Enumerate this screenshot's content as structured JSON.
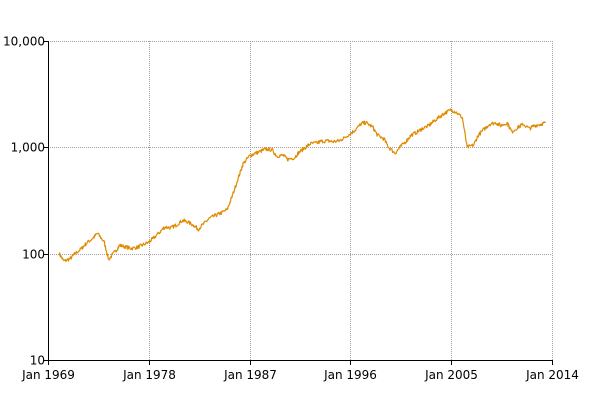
{
  "chart_data": {
    "type": "line",
    "title": "",
    "xlabel": "",
    "ylabel": "",
    "x_scale": "time",
    "y_scale": "log",
    "xlim": [
      "1969-01",
      "2014-01"
    ],
    "ylim": [
      10,
      10000
    ],
    "grid": true,
    "legend": "none",
    "x_ticks": [
      {
        "value": "1969-01",
        "label": "Jan 1969"
      },
      {
        "value": "1978-01",
        "label": "Jan 1978"
      },
      {
        "value": "1987-01",
        "label": "Jan 1987"
      },
      {
        "value": "1996-01",
        "label": "Jan 1996"
      },
      {
        "value": "2005-01",
        "label": "Jan 2005"
      },
      {
        "value": "2014-01",
        "label": "Jan 2014"
      }
    ],
    "y_ticks": [
      {
        "value": 10,
        "label": "10"
      },
      {
        "value": 100,
        "label": "100"
      },
      {
        "value": 1000,
        "label": "1,000"
      },
      {
        "value": 10000,
        "label": "10,000"
      }
    ],
    "series": [
      {
        "color": "#e08a00",
        "x": [
          "1970-01",
          "1970-06",
          "1971-01",
          "1971-06",
          "1972-01",
          "1972-06",
          "1973-01",
          "1973-06",
          "1974-01",
          "1974-06",
          "1975-01",
          "1975-06",
          "1976-01",
          "1976-06",
          "1977-01",
          "1977-06",
          "1978-01",
          "1978-06",
          "1979-01",
          "1979-06",
          "1980-01",
          "1980-06",
          "1981-01",
          "1981-06",
          "1982-01",
          "1982-06",
          "1983-01",
          "1983-06",
          "1984-01",
          "1984-06",
          "1985-01",
          "1985-06",
          "1986-01",
          "1986-06",
          "1987-01",
          "1987-06",
          "1988-01",
          "1988-06",
          "1989-01",
          "1989-06",
          "1990-01",
          "1990-06",
          "1991-01",
          "1991-06",
          "1992-01",
          "1992-06",
          "1993-01",
          "1993-06",
          "1994-01",
          "1994-06",
          "1995-01",
          "1995-06",
          "1996-01",
          "1996-06",
          "1997-01",
          "1997-06",
          "1998-01",
          "1998-06",
          "1999-01",
          "1999-06",
          "2000-01",
          "2000-06",
          "2001-01",
          "2001-06",
          "2002-01",
          "2002-06",
          "2003-01",
          "2003-06",
          "2004-01",
          "2004-06",
          "2005-01",
          "2005-06",
          "2006-01",
          "2006-06",
          "2007-01",
          "2007-06",
          "2008-01",
          "2008-06",
          "2009-01",
          "2009-06",
          "2010-01",
          "2010-06",
          "2011-01",
          "2011-06",
          "2012-01",
          "2012-06",
          "2013-01",
          "2013-06"
        ],
        "y": [
          100,
          85,
          90,
          100,
          112,
          125,
          140,
          155,
          130,
          88,
          105,
          120,
          115,
          112,
          115,
          120,
          128,
          140,
          160,
          178,
          175,
          185,
          205,
          200,
          185,
          170,
          195,
          215,
          230,
          240,
          260,
          340,
          520,
          700,
          830,
          870,
          920,
          960,
          950,
          830,
          840,
          770,
          800,
          900,
          1000,
          1080,
          1100,
          1140,
          1150,
          1130,
          1150,
          1220,
          1350,
          1450,
          1680,
          1700,
          1550,
          1300,
          1200,
          1000,
          880,
          1000,
          1150,
          1300,
          1400,
          1500,
          1600,
          1750,
          1950,
          2100,
          2250,
          2150,
          1900,
          1000,
          1050,
          1300,
          1500,
          1650,
          1700,
          1600,
          1700,
          1400,
          1550,
          1650,
          1500,
          1600,
          1650,
          1700
        ]
      }
    ]
  }
}
